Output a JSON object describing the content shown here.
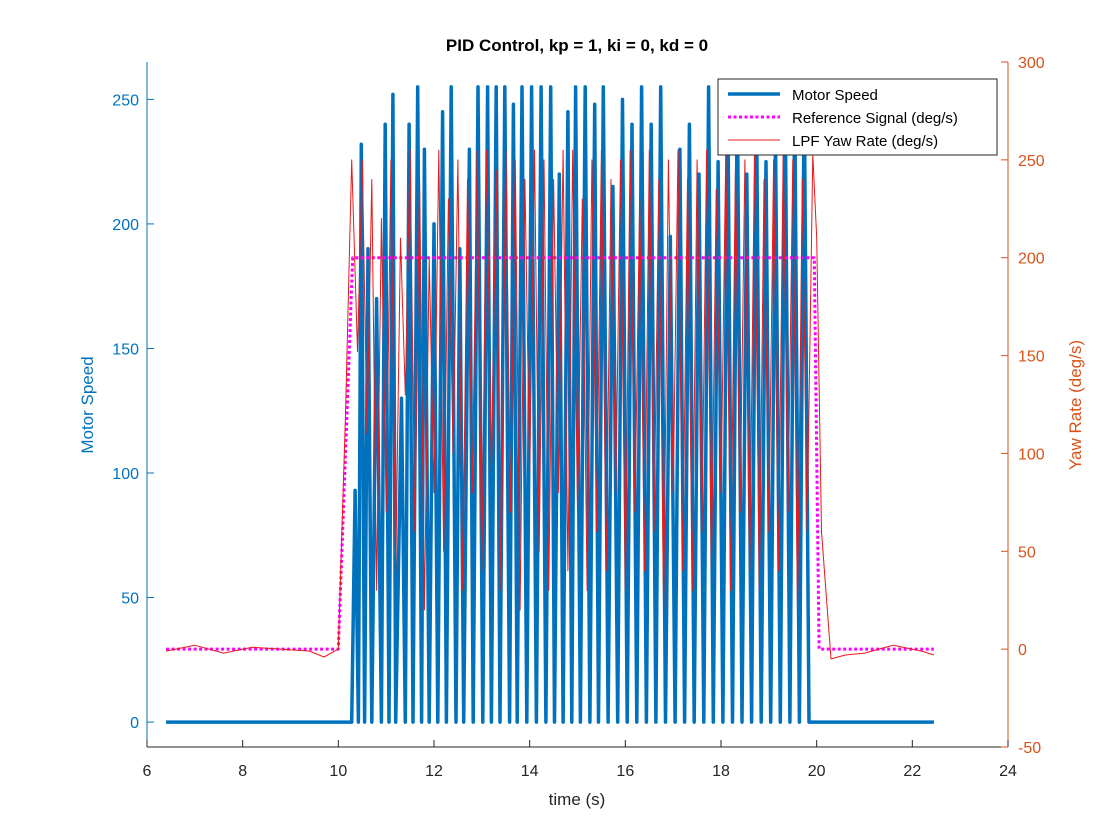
{
  "chart_data": {
    "type": "line",
    "title": "PID Control, kp = 1, ki = 0, kd = 0",
    "xlabel": "time (s)",
    "ylabel_left": "Motor Speed",
    "ylabel_right": "Yaw Rate (deg/s)",
    "xlim": [
      6,
      24
    ],
    "ylim_left": [
      -10,
      265
    ],
    "ylim_right": [
      -50,
      300
    ],
    "xticks": [
      6,
      8,
      10,
      12,
      14,
      16,
      18,
      20,
      22,
      24
    ],
    "yticks_left": [
      0,
      50,
      100,
      150,
      200,
      250
    ],
    "yticks_right": [
      -50,
      0,
      50,
      100,
      150,
      200,
      250,
      300
    ],
    "grid": false,
    "legend_position": "top-right",
    "colors": {
      "left_axis": "#0072BD",
      "right_axis": "#D95319",
      "motor": "#0072BD",
      "reference": "#FF00FF",
      "yaw": "#E8191B"
    },
    "series": [
      {
        "name": "Motor Speed",
        "axis": "left",
        "style": "solid-thick",
        "x": [
          6.4,
          10.28,
          10.35,
          10.42,
          10.48,
          10.55,
          10.62,
          10.7,
          10.8,
          10.9,
          10.98,
          11.06,
          11.14,
          11.2,
          11.32,
          11.4,
          11.48,
          11.56,
          11.66,
          11.74,
          11.8,
          11.9,
          12.0,
          12.08,
          12.18,
          12.26,
          12.36,
          12.46,
          12.54,
          12.62,
          12.74,
          12.82,
          12.92,
          13.02,
          13.12,
          13.2,
          13.3,
          13.38,
          13.48,
          13.58,
          13.66,
          13.74,
          13.84,
          13.94,
          14.04,
          14.14,
          14.24,
          14.34,
          14.44,
          14.52,
          14.62,
          14.7,
          14.8,
          14.88,
          14.96,
          15.06,
          15.16,
          15.26,
          15.36,
          15.44,
          15.54,
          15.64,
          15.74,
          15.84,
          15.94,
          16.04,
          16.14,
          16.24,
          16.34,
          16.44,
          16.54,
          16.64,
          16.74,
          16.84,
          16.94,
          17.04,
          17.14,
          17.24,
          17.34,
          17.44,
          17.54,
          17.64,
          17.74,
          17.84,
          17.94,
          18.04,
          18.14,
          18.24,
          18.34,
          18.44,
          18.54,
          18.64,
          18.74,
          18.84,
          18.94,
          19.04,
          19.14,
          19.24,
          19.34,
          19.44,
          19.54,
          19.64,
          19.74,
          19.84,
          19.95,
          22.45
        ],
        "y": [
          0,
          0,
          93,
          0,
          232,
          0,
          190,
          0,
          170,
          0,
          240,
          0,
          252,
          0,
          130,
          0,
          240,
          0,
          255,
          0,
          230,
          0,
          200,
          0,
          245,
          0,
          255,
          0,
          190,
          0,
          230,
          0,
          255,
          0,
          255,
          0,
          255,
          0,
          255,
          0,
          248,
          0,
          255,
          0,
          255,
          0,
          255,
          0,
          255,
          0,
          220,
          0,
          245,
          0,
          255,
          0,
          255,
          0,
          248,
          0,
          255,
          0,
          215,
          0,
          250,
          0,
          240,
          0,
          255,
          0,
          240,
          0,
          255,
          0,
          195,
          0,
          230,
          0,
          240,
          0,
          220,
          0,
          255,
          0,
          225,
          0,
          255,
          0,
          255,
          0,
          220,
          0,
          255,
          0,
          225,
          0,
          235,
          0,
          255,
          0,
          250,
          0,
          255,
          0,
          0,
          0
        ]
      },
      {
        "name": "Reference Signal (deg/s)",
        "axis": "right",
        "style": "dotted",
        "x": [
          6.4,
          10.0,
          10.3,
          19.95,
          20.05,
          22.45
        ],
        "y": [
          0,
          0,
          200,
          200,
          0,
          0
        ]
      },
      {
        "name": "LPF Yaw Rate (deg/s)",
        "axis": "right",
        "style": "solid-thin",
        "x": [
          6.4,
          7.0,
          7.6,
          8.2,
          8.8,
          9.4,
          9.7,
          10.0,
          10.15,
          10.28,
          10.4,
          10.5,
          10.6,
          10.7,
          10.8,
          10.9,
          11.0,
          11.1,
          11.2,
          11.3,
          11.4,
          11.5,
          11.6,
          11.7,
          11.8,
          11.9,
          12.0,
          12.1,
          12.2,
          12.3,
          12.4,
          12.5,
          12.6,
          12.7,
          12.8,
          12.9,
          13.0,
          13.1,
          13.2,
          13.3,
          13.4,
          13.5,
          13.6,
          13.7,
          13.8,
          13.9,
          14.0,
          14.1,
          14.2,
          14.3,
          14.4,
          14.5,
          14.6,
          14.7,
          14.8,
          14.9,
          15.0,
          15.1,
          15.2,
          15.3,
          15.4,
          15.5,
          15.6,
          15.7,
          15.8,
          15.9,
          16.0,
          16.1,
          16.2,
          16.3,
          16.4,
          16.5,
          16.6,
          16.7,
          16.8,
          16.9,
          17.0,
          17.1,
          17.2,
          17.3,
          17.4,
          17.5,
          17.6,
          17.7,
          17.8,
          17.9,
          18.0,
          18.1,
          18.2,
          18.3,
          18.4,
          18.5,
          18.6,
          18.7,
          18.8,
          18.9,
          19.0,
          19.1,
          19.2,
          19.3,
          19.4,
          19.5,
          19.6,
          19.7,
          19.8,
          19.92,
          20.0,
          20.1,
          20.3,
          20.6,
          21.0,
          21.6,
          22.2,
          22.45
        ],
        "y": [
          -1,
          2,
          -2,
          1,
          0,
          -1,
          -4,
          0,
          120,
          250,
          152,
          250,
          110,
          240,
          30,
          220,
          70,
          250,
          40,
          210,
          130,
          255,
          60,
          240,
          20,
          200,
          80,
          255,
          50,
          230,
          100,
          250,
          30,
          240,
          80,
          255,
          40,
          255,
          90,
          245,
          30,
          255,
          70,
          250,
          20,
          240,
          90,
          255,
          50,
          250,
          30,
          240,
          80,
          255,
          40,
          255,
          70,
          230,
          30,
          250,
          60,
          255,
          40,
          240,
          80,
          250,
          30,
          255,
          70,
          230,
          40,
          255,
          60,
          240,
          20,
          250,
          80,
          255,
          40,
          240,
          30,
          250,
          60,
          255,
          40,
          235,
          80,
          255,
          30,
          245,
          70,
          250,
          40,
          255,
          30,
          240,
          60,
          250,
          40,
          255,
          70,
          250,
          20,
          240,
          60,
          253,
          210,
          60,
          -5,
          -3,
          -2,
          2,
          -1,
          -3
        ]
      }
    ]
  }
}
